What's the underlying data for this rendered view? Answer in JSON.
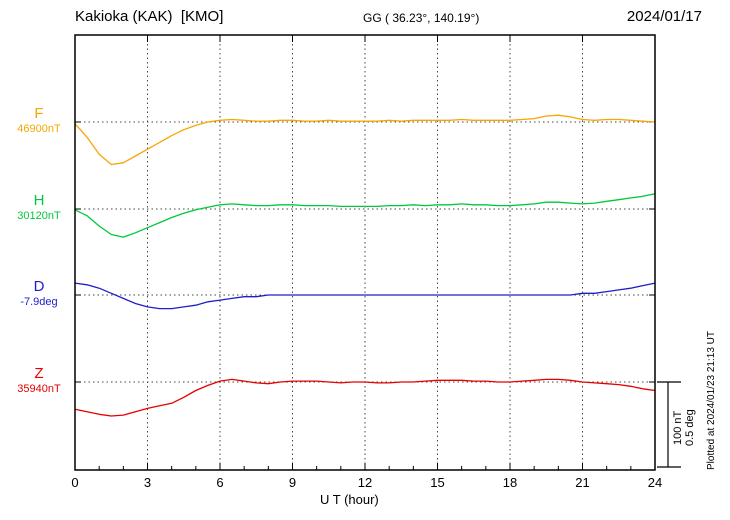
{
  "header": {
    "station": "Kakioka (KAK)  [KMO]",
    "coordinates": "GG ( 36.23°, 140.19°)",
    "date": "2024/01/17"
  },
  "footer": {
    "plotted_at": "Plotted at 2024/01/23 21:13 UT"
  },
  "chart_data": {
    "type": "line",
    "title": "Kakioka (KAK)  [KMO] magnetogram 2024/01/17",
    "xlabel": "U T (hour)",
    "x_range": [
      0,
      24
    ],
    "x_ticks": [
      0,
      3,
      6,
      9,
      12,
      15,
      18,
      21,
      24
    ],
    "x_start": 0,
    "x_step": 0.5,
    "grid": "dotted vertical at 3h intervals, dotted horizontal baselines per channel",
    "scale_bar": {
      "nT": "100 nT",
      "deg": "0.5 deg",
      "nT_value": 100,
      "deg_value": 0.5
    },
    "series": [
      {
        "name": "F",
        "baseline_label": "46900nT",
        "baseline_value": 46900,
        "unit": "nT",
        "color": "#f7a600",
        "offsets": [
          -2,
          -18,
          -38,
          -50,
          -48,
          -40,
          -32,
          -24,
          -16,
          -9,
          -4,
          0,
          2,
          3,
          2,
          1,
          1,
          2,
          2,
          1,
          1,
          2,
          1,
          1,
          1,
          1,
          2,
          1,
          2,
          2,
          2,
          2,
          3,
          2,
          2,
          2,
          2,
          3,
          4,
          7,
          8,
          6,
          3,
          2,
          3,
          3,
          2,
          1,
          0
        ]
      },
      {
        "name": "H",
        "baseline_label": "30120nT",
        "baseline_value": 30120,
        "unit": "nT",
        "color": "#00c83c",
        "offsets": [
          -1,
          -8,
          -20,
          -30,
          -33,
          -28,
          -22,
          -16,
          -10,
          -5,
          -1,
          2,
          5,
          6,
          5,
          4,
          4,
          5,
          5,
          4,
          4,
          4,
          3,
          3,
          3,
          3,
          4,
          4,
          5,
          4,
          5,
          5,
          6,
          5,
          5,
          4,
          4,
          5,
          6,
          8,
          8,
          7,
          6,
          7,
          9,
          11,
          13,
          15,
          18
        ]
      },
      {
        "name": "D",
        "baseline_label": "-7.9deg",
        "baseline_value": -7.9,
        "unit": "deg",
        "color": "#1e1ec8",
        "offsets": [
          0.07,
          0.06,
          0.04,
          0.01,
          -0.02,
          -0.05,
          -0.07,
          -0.08,
          -0.08,
          -0.07,
          -0.06,
          -0.04,
          -0.03,
          -0.02,
          -0.01,
          -0.01,
          0,
          0,
          0,
          0,
          0,
          0,
          0,
          0,
          0,
          0,
          0,
          0,
          0,
          0,
          0,
          0,
          0,
          0,
          0,
          0,
          0,
          0,
          0,
          0,
          0,
          0,
          0.01,
          0.01,
          0.02,
          0.03,
          0.04,
          0.055,
          0.07
        ]
      },
      {
        "name": "Z",
        "baseline_label": "35940nT",
        "baseline_value": 35940,
        "unit": "nT",
        "color": "#e60000",
        "offsets": [
          -32,
          -35,
          -38,
          -40,
          -39,
          -35,
          -31,
          -28,
          -25,
          -18,
          -10,
          -4,
          1,
          3,
          1,
          -1,
          -2,
          0,
          1,
          1,
          1,
          0,
          -1,
          0,
          0,
          -1,
          -1,
          0,
          0,
          1,
          2,
          2,
          2,
          1,
          1,
          0,
          0,
          1,
          2,
          3,
          3,
          2,
          0,
          -1,
          -2,
          -3,
          -5,
          -8,
          -10
        ]
      }
    ]
  }
}
